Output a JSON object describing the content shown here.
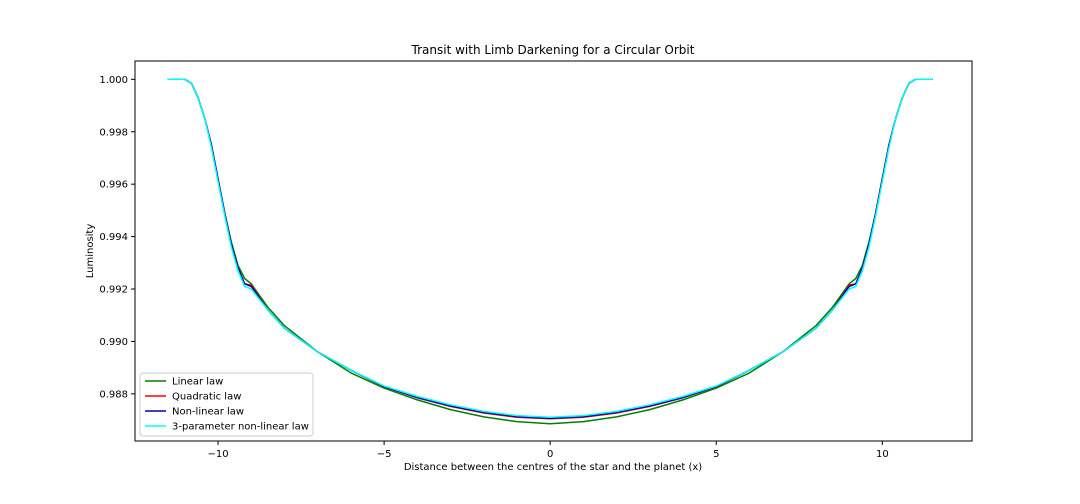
{
  "chart_data": {
    "type": "line",
    "title": "Transit with Limb Darkening for a Circular Orbit",
    "xlabel": "Distance between the centres of the star and the planet (x)",
    "ylabel": "Luminosity",
    "xlim": [
      -12.5,
      12.7
    ],
    "ylim": [
      0.9862,
      1.0007
    ],
    "x_ticks": [
      -10,
      -5,
      0,
      5,
      10
    ],
    "x_tick_labels": [
      "−10",
      "−5",
      "0",
      "5",
      "10"
    ],
    "y_ticks": [
      0.988,
      0.99,
      0.992,
      0.994,
      0.996,
      0.998,
      1.0
    ],
    "y_tick_labels": [
      "0.988",
      "0.990",
      "0.992",
      "0.994",
      "0.996",
      "0.998",
      "1.000"
    ],
    "grid": false,
    "legend_position": "lower-left",
    "series": [
      {
        "name": "Linear law",
        "color": "#008000",
        "x": [
          -11.5,
          -11.0,
          -10.8,
          -10.6,
          -10.4,
          -10.2,
          -10.0,
          -9.8,
          -9.6,
          -9.4,
          -9.2,
          -9.0,
          -8.5,
          -8.0,
          -7.0,
          -6.0,
          -5.0,
          -4.0,
          -3.0,
          -2.0,
          -1.0,
          0.0,
          1.0,
          2.0,
          3.0,
          4.0,
          5.0,
          6.0,
          7.0,
          8.0,
          8.5,
          9.0,
          9.2,
          9.4,
          9.6,
          9.8,
          10.0,
          10.2,
          10.4,
          10.6,
          10.8,
          11.0,
          11.5
        ],
        "y": [
          1.0,
          1.0,
          0.99985,
          0.9993,
          0.9985,
          0.9975,
          0.9962,
          0.9949,
          0.9938,
          0.9929,
          0.9924,
          0.9922,
          0.9913,
          0.9906,
          0.9896,
          0.9888,
          0.98822,
          0.98777,
          0.9874,
          0.98712,
          0.98694,
          0.98686,
          0.98694,
          0.98712,
          0.9874,
          0.98777,
          0.98822,
          0.9888,
          0.9896,
          0.9906,
          0.9913,
          0.9922,
          0.9924,
          0.9929,
          0.9938,
          0.9949,
          0.9962,
          0.9975,
          0.9985,
          0.9993,
          0.99985,
          1.0,
          1.0
        ]
      },
      {
        "name": "Quadratic law",
        "color": "#ff0000",
        "x": [
          -11.5,
          -11.0,
          -10.8,
          -10.6,
          -10.4,
          -10.2,
          -10.0,
          -9.8,
          -9.6,
          -9.4,
          -9.2,
          -9.0,
          -8.5,
          -8.0,
          -7.0,
          -6.0,
          -5.0,
          -4.0,
          -3.0,
          -2.0,
          -1.0,
          0.0,
          1.0,
          2.0,
          3.0,
          4.0,
          5.0,
          6.0,
          7.0,
          8.0,
          8.5,
          9.0,
          9.2,
          9.4,
          9.6,
          9.8,
          10.0,
          10.2,
          10.4,
          10.6,
          10.8,
          11.0,
          11.5
        ],
        "y": [
          1.0,
          1.0,
          0.99985,
          0.9993,
          0.9985,
          0.9975,
          0.9962,
          0.9949,
          0.9937,
          0.9928,
          0.9922,
          0.99215,
          0.9912,
          0.9905,
          0.9896,
          0.9889,
          0.98827,
          0.98785,
          0.98752,
          0.98727,
          0.98711,
          0.98705,
          0.98711,
          0.98727,
          0.98752,
          0.98785,
          0.98827,
          0.9889,
          0.9896,
          0.9905,
          0.9912,
          0.99215,
          0.9922,
          0.9928,
          0.9937,
          0.9949,
          0.9962,
          0.9975,
          0.9985,
          0.9993,
          0.99985,
          1.0,
          1.0
        ]
      },
      {
        "name": "Non-linear law",
        "color": "#0000aa",
        "x": [
          -11.5,
          -11.0,
          -10.8,
          -10.6,
          -10.4,
          -10.2,
          -10.0,
          -9.8,
          -9.6,
          -9.4,
          -9.2,
          -9.0,
          -8.5,
          -8.0,
          -7.0,
          -6.0,
          -5.0,
          -4.0,
          -3.0,
          -2.0,
          -1.0,
          0.0,
          1.0,
          2.0,
          3.0,
          4.0,
          5.0,
          6.0,
          7.0,
          8.0,
          8.5,
          9.0,
          9.2,
          9.4,
          9.6,
          9.8,
          10.0,
          10.2,
          10.4,
          10.6,
          10.8,
          11.0,
          11.5
        ],
        "y": [
          1.0,
          1.0,
          0.99985,
          0.9993,
          0.9985,
          0.9975,
          0.9962,
          0.9949,
          0.9937,
          0.9928,
          0.9922,
          0.9921,
          0.9912,
          0.9905,
          0.9896,
          0.9889,
          0.98828,
          0.98786,
          0.98754,
          0.98729,
          0.98713,
          0.98707,
          0.98713,
          0.98729,
          0.98754,
          0.98786,
          0.98828,
          0.9889,
          0.9896,
          0.9905,
          0.9912,
          0.9921,
          0.9922,
          0.9928,
          0.9937,
          0.9949,
          0.9962,
          0.9975,
          0.9985,
          0.9993,
          0.99985,
          1.0,
          1.0
        ]
      },
      {
        "name": "3-parameter non-linear law",
        "color": "#00ffff",
        "x": [
          -11.5,
          -11.0,
          -10.8,
          -10.6,
          -10.4,
          -10.2,
          -10.0,
          -9.8,
          -9.6,
          -9.4,
          -9.2,
          -9.0,
          -8.5,
          -8.0,
          -7.0,
          -6.0,
          -5.0,
          -4.0,
          -3.0,
          -2.0,
          -1.0,
          0.0,
          1.0,
          2.0,
          3.0,
          4.0,
          5.0,
          6.0,
          7.0,
          8.0,
          8.5,
          9.0,
          9.2,
          9.4,
          9.6,
          9.8,
          10.0,
          10.2,
          10.4,
          10.6,
          10.8,
          11.0,
          11.5
        ],
        "y": [
          1.0,
          1.0,
          0.99985,
          0.9993,
          0.9985,
          0.9974,
          0.9961,
          0.9948,
          0.9936,
          0.9927,
          0.9921,
          0.992,
          0.9912,
          0.9905,
          0.9896,
          0.9889,
          0.9883,
          0.9879,
          0.98758,
          0.98733,
          0.98717,
          0.98711,
          0.98717,
          0.98733,
          0.98758,
          0.9879,
          0.9883,
          0.9889,
          0.9896,
          0.9905,
          0.9912,
          0.992,
          0.9921,
          0.9927,
          0.9936,
          0.9948,
          0.9961,
          0.9974,
          0.9985,
          0.9993,
          0.99985,
          1.0,
          1.0
        ]
      }
    ]
  }
}
